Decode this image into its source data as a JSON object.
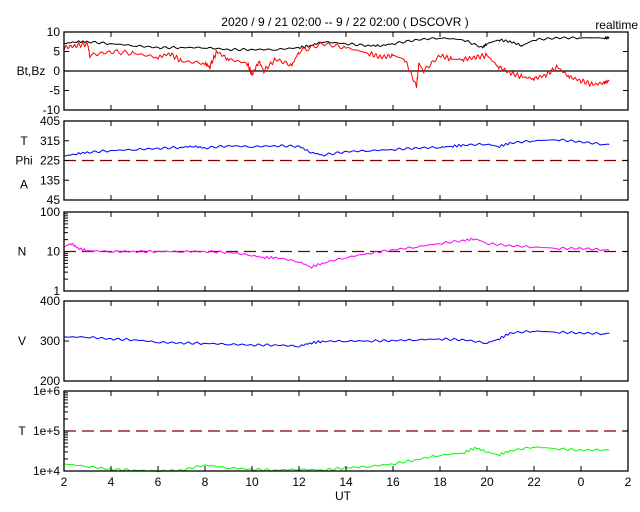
{
  "chart_data": [
    {
      "type": "line",
      "title": "2020 / 9 / 21   02:00 --  9 / 22   02:00 ( DSCOVR )",
      "mode_label": "realtime",
      "ylabel": "Bt,Bz",
      "ylim": [
        -10,
        10
      ],
      "yticks": [
        "10",
        "5",
        "0",
        "-5",
        "-10"
      ],
      "yvals": [
        10,
        5,
        0,
        -5,
        -10
      ],
      "ref_line": 0,
      "ref_style": "solid",
      "series": [
        {
          "name": "Bt",
          "color": "#000000",
          "x": [
            2,
            2.5,
            3,
            4,
            5,
            6,
            7,
            8,
            9,
            10,
            11,
            12,
            12.5,
            13,
            14,
            15,
            15.5,
            16,
            17,
            18,
            19,
            19.8,
            20,
            20.5,
            21,
            21.5,
            22,
            23,
            24,
            25,
            25.2
          ],
          "y": [
            7,
            7.5,
            7.5,
            7,
            6.5,
            6,
            6,
            6,
            5.5,
            5.5,
            5.5,
            6,
            6.5,
            7.5,
            7,
            6.5,
            6.5,
            7,
            8,
            8.5,
            8,
            6,
            7,
            8,
            7.5,
            6.5,
            8,
            8.5,
            8.5,
            8.5,
            8.5
          ]
        },
        {
          "name": "Bz",
          "color": "#ff0000",
          "x": [
            2,
            2.5,
            3,
            3.1,
            4,
            5,
            6,
            6.5,
            7,
            8,
            8.2,
            8.5,
            9,
            9.8,
            10,
            10.3,
            10.5,
            11,
            11.7,
            12,
            13,
            14,
            15,
            15.5,
            16,
            16.5,
            17,
            17.1,
            17.3,
            18,
            18.5,
            19,
            19.5,
            20,
            20.5,
            21,
            21.5,
            22,
            22.5,
            23,
            23.5,
            24,
            24.5,
            25,
            25.2
          ],
          "y": [
            6,
            6.5,
            7,
            4,
            5,
            4.5,
            3.5,
            4.5,
            2.5,
            2,
            1,
            5,
            3,
            2,
            -1,
            2.5,
            0,
            3,
            1.5,
            5,
            7,
            6,
            4.5,
            3.5,
            4,
            3,
            -4,
            2,
            0,
            4,
            3,
            3,
            3.5,
            4,
            1,
            -0.5,
            -1.5,
            -2,
            -1,
            1,
            -1.5,
            -2.5,
            -3.5,
            -3,
            -2.5
          ]
        }
      ]
    },
    {
      "type": "line",
      "ylabels": [
        "T",
        "Phi",
        "A"
      ],
      "ylim": [
        45,
        405
      ],
      "yticks": [
        "405",
        "315",
        "225",
        "135",
        "45"
      ],
      "yvals": [
        405,
        315,
        225,
        135,
        45
      ],
      "ref_line": 225,
      "ref_style": "dashed",
      "series": [
        {
          "name": "Phi",
          "color": "#0000ff",
          "x": [
            2,
            2.5,
            3,
            4,
            5,
            6,
            7,
            7.5,
            8,
            9,
            10,
            11,
            12,
            12.5,
            13,
            14,
            15,
            16,
            17,
            18,
            18.5,
            19,
            20,
            20.5,
            21,
            22,
            23,
            24,
            25,
            25.2
          ],
          "y": [
            245,
            255,
            262,
            270,
            275,
            280,
            285,
            290,
            282,
            292,
            288,
            292,
            290,
            262,
            250,
            265,
            270,
            275,
            282,
            285,
            290,
            295,
            300,
            288,
            305,
            315,
            320,
            310,
            298,
            300
          ]
        }
      ]
    },
    {
      "type": "line",
      "ylabel": "N",
      "scale": "log",
      "ylim": [
        1,
        100
      ],
      "yticks": [
        "100",
        "10",
        "1"
      ],
      "yvals": [
        100,
        10,
        1
      ],
      "ref_line": 10,
      "ref_style": "dashed",
      "series": [
        {
          "name": "N",
          "color": "#ff00ff",
          "x": [
            2,
            2.3,
            2.6,
            3,
            4,
            5,
            6,
            7,
            8,
            9,
            10,
            10.5,
            11,
            12,
            12.5,
            13,
            14,
            15,
            16,
            17,
            18,
            19,
            19.5,
            20,
            21,
            22,
            23,
            24,
            25,
            25.2
          ],
          "y": [
            13,
            16,
            12,
            10.5,
            10,
            10,
            10,
            10,
            10,
            9.5,
            8,
            7,
            7,
            5.5,
            4,
            5,
            7,
            9,
            11,
            13,
            16,
            19,
            21,
            16,
            14,
            13,
            12,
            12,
            11,
            11
          ]
        }
      ]
    },
    {
      "type": "line",
      "ylabel": "V",
      "ylim": [
        200,
        400
      ],
      "yticks": [
        "400",
        "300",
        "200"
      ],
      "yvals": [
        400,
        300,
        200
      ],
      "series": [
        {
          "name": "V",
          "color": "#0000ff",
          "x": [
            2,
            3,
            4,
            5,
            6,
            7,
            8,
            9,
            10,
            11,
            12,
            12.5,
            13,
            14,
            15,
            16,
            17,
            18,
            19,
            20,
            20.5,
            21,
            22,
            23,
            24,
            25,
            25.2
          ],
          "y": [
            310,
            310,
            305,
            303,
            297,
            295,
            294,
            292,
            290,
            290,
            287,
            295,
            299,
            300,
            300,
            301,
            303,
            305,
            303,
            295,
            305,
            320,
            325,
            322,
            320,
            318,
            320
          ]
        }
      ]
    },
    {
      "type": "line",
      "ylabel": "T",
      "scale": "log",
      "ylim": [
        10000,
        1000000
      ],
      "yticks": [
        "1e+6",
        "1e+5",
        "1e+4"
      ],
      "yvals": [
        1000000,
        100000,
        10000
      ],
      "ref_line": 100000,
      "ref_style": "dashed",
      "series": [
        {
          "name": "T",
          "color": "#00ff00",
          "x": [
            2,
            3,
            4,
            5,
            6,
            7,
            8,
            9,
            10,
            11,
            12,
            13,
            14,
            15,
            16,
            17,
            18,
            19,
            19.5,
            20,
            20.5,
            21,
            22,
            23,
            24,
            25,
            25.2
          ],
          "y": [
            15000,
            13000,
            11000,
            10500,
            10000,
            10500,
            14000,
            12000,
            11000,
            10500,
            11000,
            10500,
            12000,
            13000,
            15000,
            19000,
            25000,
            28000,
            38000,
            30000,
            25000,
            32000,
            40000,
            36000,
            33000,
            34000,
            34000
          ]
        }
      ]
    }
  ],
  "xaxis": {
    "label": "UT",
    "range": [
      2,
      26
    ],
    "ticks": [
      "2",
      "4",
      "6",
      "8",
      "10",
      "12",
      "14",
      "16",
      "18",
      "20",
      "22",
      "0",
      "2"
    ],
    "tickvals": [
      2,
      4,
      6,
      8,
      10,
      12,
      14,
      16,
      18,
      20,
      22,
      24,
      26
    ]
  },
  "ref_color": "#800000"
}
